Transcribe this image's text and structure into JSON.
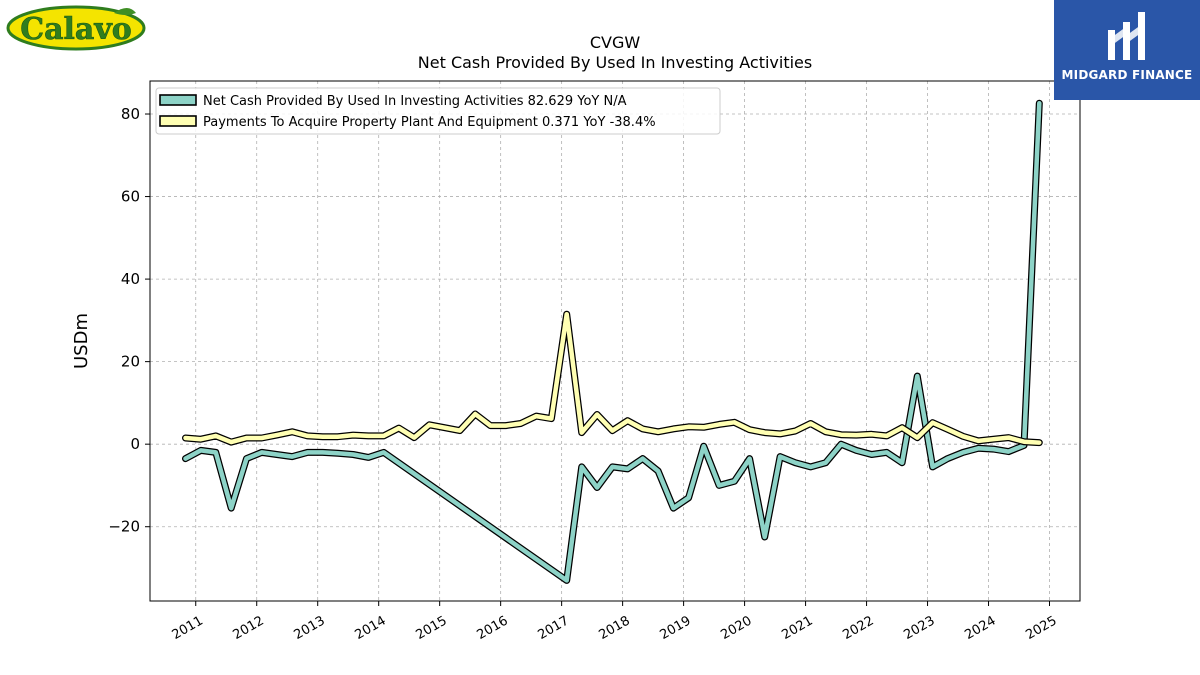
{
  "logos": {
    "left_text": "Calavo",
    "right_text": "MIDGARD FINANCE"
  },
  "chart_data": {
    "type": "line",
    "title": "CVGW",
    "subtitle": "Net Cash Provided By Used In Investing Activities",
    "ylabel": "USDm",
    "xlabel": "",
    "ylim": [
      -38,
      88
    ],
    "xlim": [
      2010.25,
      2025.5
    ],
    "yticks": [
      -20,
      0,
      20,
      40,
      60,
      80
    ],
    "ytick_labels": [
      "−20",
      "0",
      "20",
      "40",
      "60",
      "80"
    ],
    "xticks": [
      2011,
      2012,
      2013,
      2014,
      2015,
      2016,
      2017,
      2018,
      2019,
      2020,
      2021,
      2022,
      2023,
      2024,
      2025
    ],
    "xtick_labels": [
      "2011",
      "2012",
      "2013",
      "2014",
      "2015",
      "2016",
      "2017",
      "2018",
      "2019",
      "2020",
      "2021",
      "2022",
      "2023",
      "2024",
      "2025"
    ],
    "grid": true,
    "legend_position": "top-left",
    "series": [
      {
        "name": "Net Cash Provided By Used In Investing Activities",
        "legend_label": "Net Cash Provided By Used In Investing Activities  82.629 YoY N/A",
        "color": "#8dd3c7",
        "x": [
          "2010-10-31",
          "2011-01-31",
          "2011-04-30",
          "2011-07-31",
          "2011-10-31",
          "2012-01-31",
          "2012-04-30",
          "2012-07-31",
          "2012-10-31",
          "2013-01-31",
          "2013-04-30",
          "2013-07-31",
          "2013-10-31",
          "2014-01-31",
          "2017-01-31",
          "2017-04-30",
          "2017-07-31",
          "2017-10-31",
          "2018-01-31",
          "2018-04-30",
          "2018-07-31",
          "2018-10-31",
          "2019-01-31",
          "2019-04-30",
          "2019-07-31",
          "2019-10-31",
          "2020-01-31",
          "2020-04-30",
          "2020-07-31",
          "2020-10-31",
          "2021-01-31",
          "2021-04-30",
          "2021-07-31",
          "2021-10-31",
          "2022-01-31",
          "2022-04-30",
          "2022-07-31",
          "2022-10-31",
          "2023-01-31",
          "2023-04-30",
          "2023-07-31",
          "2023-10-31",
          "2024-01-31",
          "2024-04-30",
          "2024-07-31",
          "2024-10-31"
        ],
        "values": [
          -3.5,
          -1.5,
          -2.0,
          -15.5,
          -3.5,
          -2.0,
          -2.5,
          -3.0,
          -2.0,
          -2.0,
          -2.2,
          -2.5,
          -3.2,
          -2.0,
          -33.0,
          -5.5,
          -10.5,
          -5.5,
          -6.0,
          -3.5,
          -6.5,
          -15.5,
          -13.0,
          -0.5,
          -10.0,
          -9.0,
          -3.5,
          -22.5,
          -3.0,
          -4.5,
          -5.5,
          -4.5,
          0.0,
          -1.5,
          -2.5,
          -2.0,
          -4.5,
          16.5,
          -5.5,
          -3.5,
          -2.0,
          -1.0,
          -1.2,
          -1.8,
          -0.3,
          82.629
        ]
      },
      {
        "name": "Payments To Acquire Property Plant And Equipment",
        "legend_label": "Payments To Acquire Property Plant And Equipment  0.371 YoY -38.4%",
        "color": "#ffffb3",
        "x": [
          "2010-10-31",
          "2011-01-31",
          "2011-04-30",
          "2011-07-31",
          "2011-10-31",
          "2012-01-31",
          "2012-04-30",
          "2012-07-31",
          "2012-10-31",
          "2013-01-31",
          "2013-04-30",
          "2013-07-31",
          "2013-10-31",
          "2014-01-31",
          "2014-04-30",
          "2014-07-31",
          "2014-10-31",
          "2015-01-31",
          "2015-04-30",
          "2015-07-31",
          "2015-10-31",
          "2016-01-31",
          "2016-04-30",
          "2016-07-31",
          "2016-10-31",
          "2017-01-31",
          "2017-04-30",
          "2017-07-31",
          "2017-10-31",
          "2018-01-31",
          "2018-04-30",
          "2018-07-31",
          "2018-10-31",
          "2019-01-31",
          "2019-04-30",
          "2019-07-31",
          "2019-10-31",
          "2020-01-31",
          "2020-04-30",
          "2020-07-31",
          "2020-10-31",
          "2021-01-31",
          "2021-04-30",
          "2021-07-31",
          "2021-10-31",
          "2022-01-31",
          "2022-04-30",
          "2022-07-31",
          "2022-10-31",
          "2023-01-31",
          "2023-04-30",
          "2023-07-31",
          "2023-10-31",
          "2024-01-31",
          "2024-04-30",
          "2024-07-31",
          "2024-10-31"
        ],
        "values": [
          1.5,
          1.2,
          2.0,
          0.5,
          1.5,
          1.5,
          2.2,
          3.0,
          2.0,
          1.8,
          1.8,
          2.2,
          2.0,
          2.0,
          3.9,
          1.6,
          4.7,
          4.0,
          3.3,
          7.3,
          4.5,
          4.5,
          5.0,
          6.8,
          6.2,
          31.5,
          2.8,
          7.2,
          3.3,
          5.7,
          3.7,
          3.0,
          3.7,
          4.2,
          4.1,
          4.8,
          5.3,
          3.5,
          2.8,
          2.5,
          3.2,
          5.0,
          3.0,
          2.3,
          2.2,
          2.4,
          2.0,
          4.0,
          1.6,
          5.2,
          3.6,
          1.9,
          0.8,
          1.2,
          1.6,
          0.6,
          0.371
        ]
      }
    ]
  }
}
